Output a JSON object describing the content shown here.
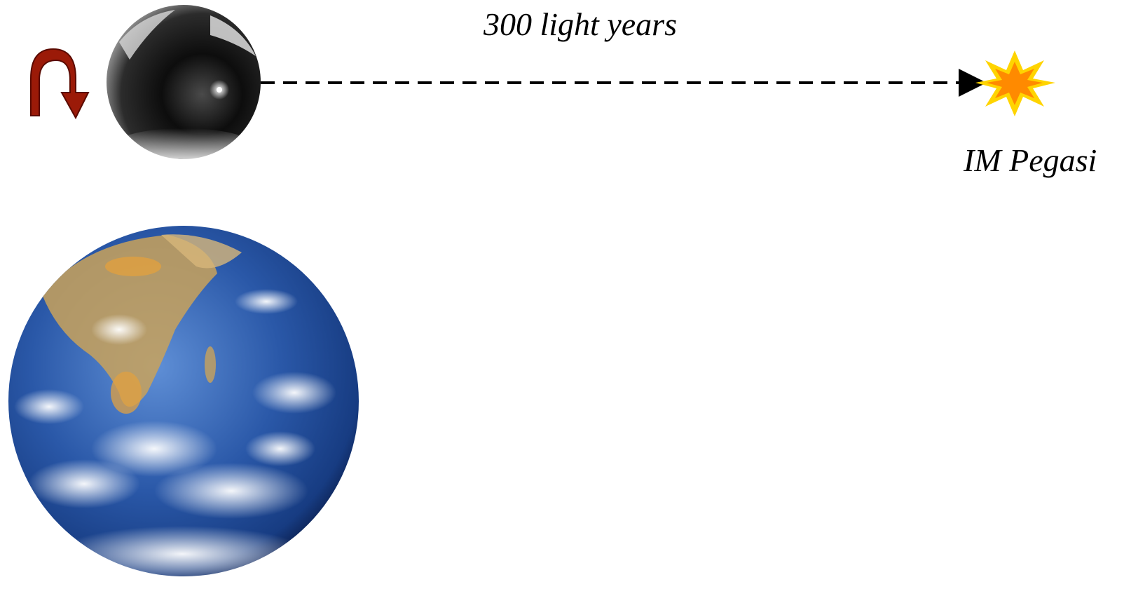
{
  "diagram": {
    "distance_label": "300 light years",
    "star_label": "IM Pegasi",
    "colors": {
      "rotation_arrow": "#9b1a08",
      "rotation_arrow_edge": "#5a0a00",
      "beam": "#000000",
      "star_outer": "#ffd400",
      "star_inner": "#ff8a00",
      "ocean": "#1f4fa0",
      "land": "#c9a25a"
    },
    "icons": {
      "rotation": "curved-arrow-icon",
      "gyroscope": "gyroscope-sphere",
      "star": "star-burst-icon",
      "earth": "earth-globe"
    }
  }
}
